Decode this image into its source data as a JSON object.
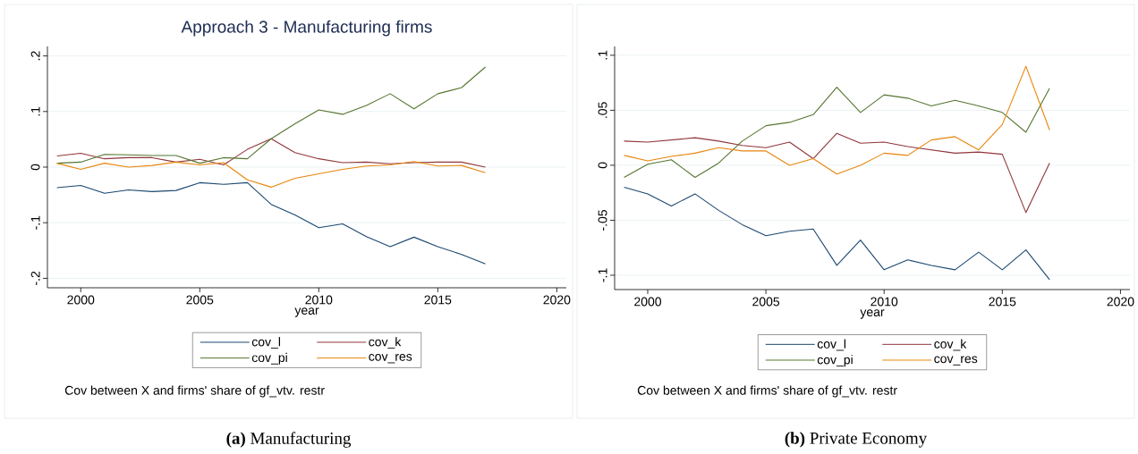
{
  "chart_data": [
    {
      "type": "line",
      "title": "Approach 3 - Manufacturing firms",
      "xlabel": "year",
      "x": [
        1999,
        2000,
        2001,
        2002,
        2003,
        2004,
        2005,
        2006,
        2007,
        2008,
        2009,
        2010,
        2011,
        2012,
        2013,
        2014,
        2015,
        2016,
        2017
      ],
      "series": [
        {
          "name": "cov_l",
          "color": "#1a476f",
          "values": [
            -0.037,
            -0.033,
            -0.047,
            -0.041,
            -0.044,
            -0.042,
            -0.028,
            -0.031,
            -0.028,
            -0.067,
            -0.086,
            -0.109,
            -0.102,
            -0.125,
            -0.143,
            -0.126,
            -0.143,
            -0.157,
            -0.174
          ]
        },
        {
          "name": "cov_k",
          "color": "#90353b",
          "values": [
            0.02,
            0.025,
            0.015,
            0.017,
            0.017,
            0.009,
            0.014,
            0.004,
            0.032,
            0.051,
            0.026,
            0.015,
            0.008,
            0.009,
            0.006,
            0.008,
            0.009,
            0.009,
            0.0
          ]
        },
        {
          "name": "cov_pi",
          "color": "#55752f",
          "values": [
            0.007,
            0.009,
            0.023,
            0.022,
            0.021,
            0.021,
            0.007,
            0.017,
            0.015,
            0.051,
            0.078,
            0.103,
            0.095,
            0.111,
            0.132,
            0.105,
            0.132,
            0.143,
            0.18
          ]
        },
        {
          "name": "cov_res",
          "color": "#e8850b",
          "values": [
            0.007,
            -0.004,
            0.007,
            0.0,
            0.003,
            0.009,
            0.004,
            0.008,
            -0.023,
            -0.036,
            -0.02,
            -0.012,
            -0.004,
            0.002,
            0.004,
            0.01,
            0.002,
            0.003,
            -0.01
          ]
        }
      ],
      "xlim": [
        1998.6,
        2020.4
      ],
      "xticks": [
        2000,
        2005,
        2010,
        2015,
        2020
      ],
      "ylim": [
        -0.217,
        0.217
      ],
      "yticks": [
        {
          "value": -0.2,
          "label": "-.2"
        },
        {
          "value": -0.1,
          "label": "-.1"
        },
        0,
        {
          "value": 0.1,
          "label": ".1"
        },
        {
          "value": 0.2,
          "label": ".2"
        }
      ],
      "grid": "y",
      "legend": "bottom",
      "marker": "none",
      "line_style": "solid",
      "annotations": [
        "Cov between X and firms' share of gf_vtv. restr",
        "**(a)** Manufacturing"
      ]
    },
    {
      "type": "line",
      "xlabel": "year",
      "x": [
        1999,
        2000,
        2001,
        2002,
        2003,
        2004,
        2005,
        2006,
        2007,
        2008,
        2009,
        2010,
        2011,
        2012,
        2013,
        2014,
        2015,
        2016,
        2017
      ],
      "series": [
        {
          "name": "cov_l",
          "color": "#1a476f",
          "values": [
            -0.02,
            -0.026,
            -0.037,
            -0.026,
            -0.041,
            -0.054,
            -0.064,
            -0.06,
            -0.058,
            -0.091,
            -0.068,
            -0.095,
            -0.086,
            -0.091,
            -0.095,
            -0.079,
            -0.095,
            -0.077,
            -0.104
          ]
        },
        {
          "name": "cov_k",
          "color": "#90353b",
          "values": [
            0.022,
            0.021,
            0.023,
            0.025,
            0.022,
            0.018,
            0.016,
            0.021,
            0.006,
            0.029,
            0.02,
            0.021,
            0.017,
            0.014,
            0.011,
            0.012,
            0.01,
            -0.043,
            0.002
          ]
        },
        {
          "name": "cov_pi",
          "color": "#55752f",
          "values": [
            -0.011,
            0.001,
            0.005,
            -0.011,
            0.002,
            0.022,
            0.036,
            0.039,
            0.046,
            0.071,
            0.048,
            0.064,
            0.061,
            0.054,
            0.059,
            0.054,
            0.048,
            0.03,
            0.07
          ]
        },
        {
          "name": "cov_res",
          "color": "#e8850b",
          "values": [
            0.009,
            0.004,
            0.008,
            0.011,
            0.016,
            0.013,
            0.013,
            0.0,
            0.006,
            -0.008,
            0.0,
            0.011,
            0.009,
            0.023,
            0.026,
            0.014,
            0.037,
            0.09,
            0.032
          ]
        }
      ],
      "xlim": [
        1998.6,
        2020.4
      ],
      "xticks": [
        2000,
        2005,
        2010,
        2015,
        2020
      ],
      "ylim": [
        -0.113,
        0.108
      ],
      "yticks": [
        {
          "value": -0.1,
          "label": "-.1"
        },
        {
          "value": -0.05,
          "label": "-.05"
        },
        0,
        {
          "value": 0.05,
          "label": ".05"
        },
        {
          "value": 0.1,
          "label": ".1"
        }
      ],
      "grid": "y",
      "legend": "bottom",
      "marker": "none",
      "line_style": "solid",
      "annotations": [
        "Cov between X and firms' share of gf_vtv. restr",
        "**(b)** Private Economy"
      ]
    }
  ]
}
